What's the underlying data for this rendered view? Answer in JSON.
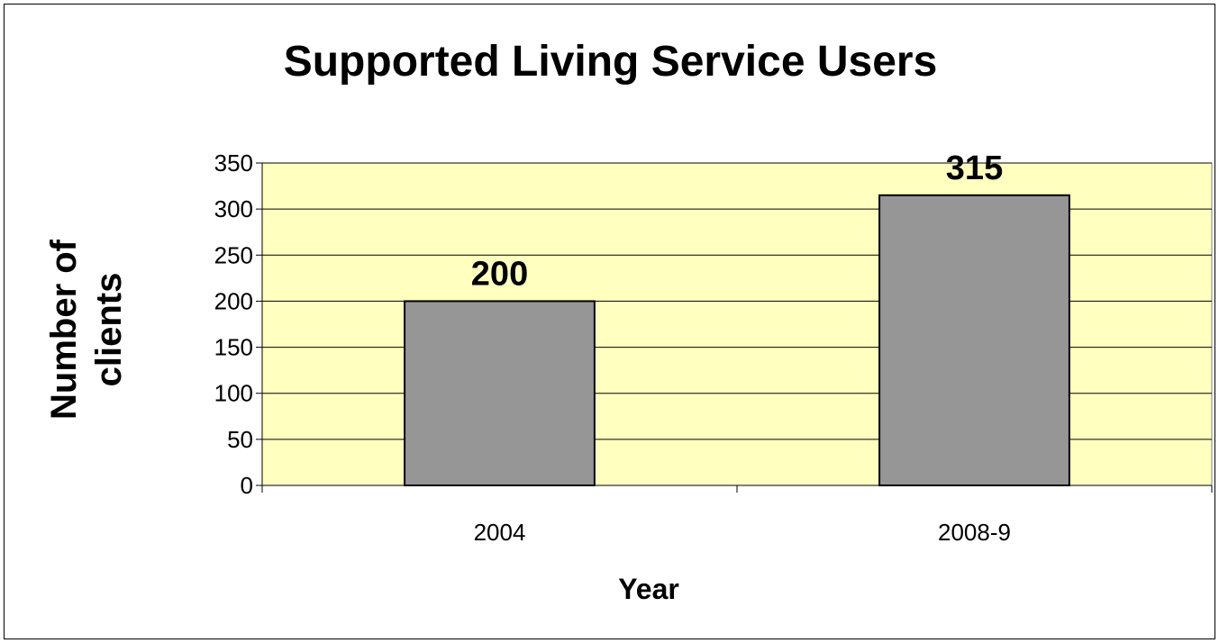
{
  "chart_data": {
    "type": "bar",
    "title": "Supported Living Service Users",
    "xlabel": "Year",
    "ylabel": "Number of clients",
    "categories": [
      "2004",
      "2008-9"
    ],
    "values": [
      200,
      315
    ],
    "data_labels": [
      "200",
      "315"
    ],
    "ylim": [
      0,
      350
    ],
    "yticks": [
      "0",
      "50",
      "100",
      "150",
      "200",
      "250",
      "300",
      "350"
    ],
    "grid": true,
    "legend": "none",
    "colors": {
      "plot_background": "#FFFFC0",
      "bar_fill": "#969696",
      "bar_stroke": "#000000",
      "gridline": "#000000"
    }
  }
}
